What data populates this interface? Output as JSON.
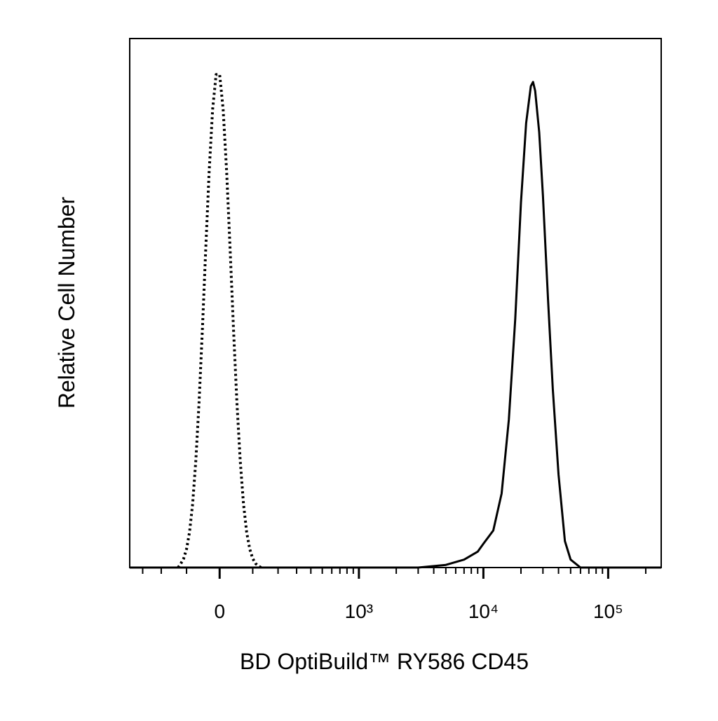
{
  "chart_data": {
    "type": "line",
    "xlabel": "BD OptiBuild™ RY586 CD45",
    "ylabel": "Relative Cell Number",
    "xscale": "biexponential",
    "xlim": [
      -390,
      266000
    ],
    "ylim": [
      0,
      100
    ],
    "xticks": [
      0,
      {
        "value": 1000,
        "label": "10³"
      },
      {
        "value": 10000,
        "label": "10⁴"
      },
      {
        "value": 100000,
        "label": "10⁵"
      }
    ],
    "xminorticks": [
      -300,
      -200,
      -100,
      100,
      200,
      300,
      400,
      500,
      600,
      700,
      800,
      900,
      2000,
      3000,
      4000,
      5000,
      6000,
      7000,
      8000,
      9000,
      20000,
      30000,
      40000,
      50000,
      60000,
      70000,
      80000,
      90000,
      200000
    ],
    "series": [
      {
        "style": "dotted",
        "color": "#000000",
        "x": [
          -130,
          -120,
          -110,
          -100,
          -90,
          -80,
          -70,
          -60,
          -50,
          -40,
          -30,
          -20,
          -10,
          0,
          10,
          20,
          30,
          40,
          50,
          60,
          70,
          80,
          90,
          100,
          110,
          120,
          130
        ],
        "values": [
          0,
          0.75,
          1.7,
          3.5,
          6.7,
          12.0,
          20.1,
          31.1,
          44.8,
          60.1,
          74.8,
          86.6,
          93.2,
          93.2,
          86.6,
          74.8,
          60.1,
          44.8,
          31.1,
          20.1,
          12.0,
          6.7,
          3.5,
          1.7,
          0.75,
          0.3,
          0
        ]
      },
      {
        "style": "solid",
        "color": "#000000",
        "x": [
          -390,
          3000,
          5000,
          7000,
          9000,
          10000,
          12000,
          14000,
          16000,
          18000,
          20000,
          22000,
          24000,
          25000,
          26000,
          28000,
          30000,
          33000,
          36000,
          40000,
          45000,
          50000,
          60000,
          266000
        ],
        "values": [
          0,
          0,
          0.5,
          1.5,
          3,
          4.5,
          7,
          14,
          28,
          47,
          69,
          84,
          91,
          91.8,
          90.1,
          82.3,
          70.3,
          50.4,
          33.7,
          17.6,
          5,
          1.5,
          0,
          0
        ]
      }
    ]
  }
}
